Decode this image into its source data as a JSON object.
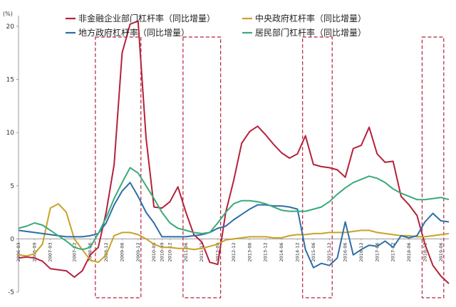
{
  "chart_data": {
    "type": "line",
    "unit_label": "(%)",
    "ylim": [
      -5,
      21
    ],
    "yticks": [
      -5,
      0,
      5,
      10,
      15,
      20
    ],
    "x": [
      "2006-03",
      "2006-06",
      "2006-09",
      "2006-12",
      "2007-03",
      "2007-06",
      "2007-09",
      "2007-12",
      "2008-03",
      "2008-06",
      "2008-09",
      "2008-12",
      "2009-03",
      "2009-06",
      "2009-09",
      "2009-12",
      "2010-03",
      "2010-06",
      "2010-09",
      "2010-12",
      "2011-03",
      "2011-06",
      "2011-09",
      "2011-12",
      "2012-03",
      "2012-06",
      "2012-09",
      "2012-12",
      "2013-03",
      "2013-06",
      "2013-09",
      "2013-12",
      "2014-03",
      "2014-06",
      "2014-09",
      "2014-12",
      "2015-03",
      "2015-06",
      "2015-09",
      "2015-12",
      "2016-03",
      "2016-06",
      "2016-09",
      "2016-12",
      "2017-03",
      "2017-06",
      "2017-09",
      "2017-12",
      "2018-03",
      "2018-06",
      "2018-09",
      "2018-12",
      "2019-03",
      "2019-06",
      "2019-09"
    ],
    "xtick_labels": [
      "2006-03",
      "2006-09",
      "2007-03",
      "2007-12",
      "2008-06",
      "2008-12",
      "2009-06",
      "2009-12",
      "2010-06",
      "2010-09",
      "2010-12",
      "2011-06",
      "2011-12",
      "2012-06",
      "2012-12",
      "2013-06",
      "2013-12",
      "2014-06",
      "2014-12",
      "2015-06",
      "2015-12",
      "2016-06",
      "2016-12",
      "2017-06",
      "2017-12",
      "2018-06",
      "2018-12",
      "2019-06"
    ],
    "series": [
      {
        "name": "非金融企业部门杠杆率（同比增量）",
        "color": "#b5213a",
        "values": [
          -1.8,
          -1.7,
          -1.8,
          -2.1,
          -2.8,
          -2.9,
          -3.0,
          -3.6,
          -3.0,
          -1.5,
          -0.8,
          2.5,
          7.0,
          17.5,
          20.2,
          20.5,
          9.5,
          3.0,
          2.9,
          3.5,
          4.9,
          2.5,
          0.4,
          -0.3,
          -2.2,
          -2.4,
          2.5,
          5.5,
          9.0,
          10.1,
          10.6,
          9.8,
          8.9,
          8.1,
          7.6,
          8.0,
          9.7,
          7.0,
          6.8,
          6.7,
          6.5,
          5.8,
          8.5,
          8.8,
          10.5,
          8.0,
          7.2,
          7.3,
          4.0,
          3.2,
          2.2,
          -0.5,
          -2.5,
          -3.5,
          -4.2
        ]
      },
      {
        "name": "中央政府杠杆率（同比增量）",
        "color": "#c9a227",
        "values": [
          -1.5,
          -1.6,
          -1.4,
          -0.5,
          2.9,
          3.3,
          2.5,
          0.0,
          -1.0,
          -2.0,
          -2.2,
          -1.5,
          0.3,
          0.6,
          0.6,
          0.4,
          0.0,
          -0.5,
          -0.8,
          -0.8,
          -0.9,
          -0.9,
          -1.0,
          -0.9,
          -0.7,
          -0.5,
          -0.1,
          0.0,
          0.1,
          0.2,
          0.2,
          0.2,
          0.1,
          0.1,
          0.3,
          0.4,
          0.4,
          0.5,
          0.5,
          0.6,
          0.6,
          0.6,
          0.7,
          0.8,
          0.8,
          0.6,
          0.5,
          0.4,
          0.3,
          0.3,
          0.2,
          0.2,
          0.3,
          0.4,
          0.5
        ]
      },
      {
        "name": "地方政府杠杆率（同比增量）",
        "color": "#2e6ea6",
        "values": [
          0.8,
          0.7,
          0.6,
          0.5,
          0.4,
          0.3,
          0.2,
          0.2,
          0.2,
          0.3,
          0.5,
          1.5,
          3.2,
          4.5,
          5.3,
          4.0,
          2.5,
          1.5,
          0.2,
          0.2,
          0.2,
          0.2,
          0.3,
          0.4,
          0.6,
          1.0,
          1.2,
          1.8,
          2.3,
          2.8,
          3.2,
          3.2,
          3.1,
          3.1,
          3.0,
          2.8,
          -1.0,
          -2.7,
          -2.3,
          -2.5,
          -1.8,
          1.6,
          -1.5,
          -1.0,
          -0.6,
          -0.7,
          -0.2,
          -0.8,
          0.3,
          0.1,
          0.3,
          1.6,
          2.4,
          1.7,
          1.6
        ]
      },
      {
        "name": "居民部门杠杆率（同比增量）",
        "color": "#3aaa7a",
        "values": [
          1.0,
          1.2,
          1.5,
          1.3,
          0.8,
          0.3,
          -0.2,
          -0.8,
          -1.0,
          -0.8,
          0.5,
          2.0,
          3.8,
          5.3,
          6.7,
          6.2,
          5.0,
          3.8,
          2.5,
          1.5,
          1.0,
          0.8,
          0.6,
          0.5,
          0.6,
          1.5,
          2.5,
          3.3,
          3.6,
          3.6,
          3.5,
          3.3,
          3.0,
          2.7,
          2.6,
          2.6,
          2.6,
          2.8,
          3.0,
          3.5,
          4.2,
          4.8,
          5.3,
          5.6,
          5.9,
          5.7,
          5.3,
          4.7,
          4.3,
          4.0,
          3.7,
          3.7,
          3.8,
          3.9,
          3.7
        ]
      }
    ],
    "highlight_ranges": [
      [
        "2008-09",
        "2009-12"
      ],
      [
        "2011-06",
        "2012-06"
      ],
      [
        "2015-03",
        "2015-12"
      ],
      [
        "2018-12",
        "2019-06"
      ]
    ],
    "grid": false,
    "legend_position": "top"
  }
}
